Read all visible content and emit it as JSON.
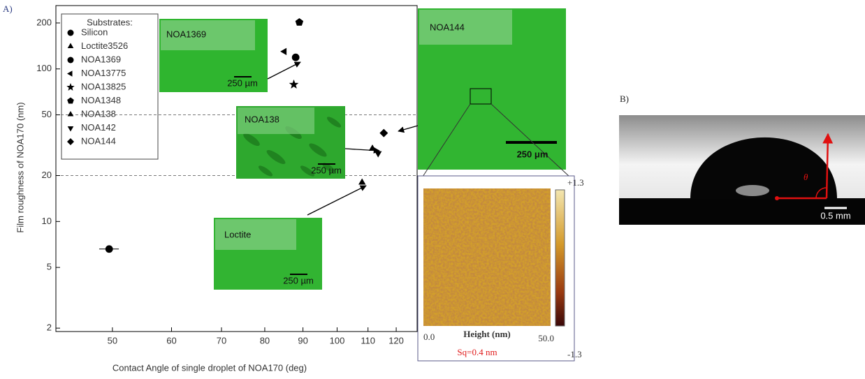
{
  "chart_data": {
    "type": "scatter",
    "panel_label": "A)",
    "x_label": "Contact Angle of single droplet of NOA170 (deg)",
    "y_label": "Film roughness of NOA170 (nm)",
    "xscale": "log",
    "yscale": "log",
    "xlim": [
      42,
      128
    ],
    "ylim": [
      1.9,
      260
    ],
    "xticks": [
      50,
      60,
      70,
      80,
      90,
      100,
      110,
      120
    ],
    "yticks": [
      2,
      5,
      10,
      20,
      50,
      100,
      200
    ],
    "hlines": [
      50,
      20
    ],
    "legend_title": "Substrates:",
    "series": [
      {
        "name": "Silicon",
        "marker": "circle",
        "color": "#000000",
        "x": [
          49.5
        ],
        "values": [
          6.6
        ],
        "xerr": [
          1.5
        ]
      },
      {
        "name": "Loctite3526",
        "marker": "triangle-up",
        "color": "#000000",
        "x": [
          108
        ],
        "values": [
          18
        ]
      },
      {
        "name": "NOA1369",
        "marker": "circle",
        "color": "#000000",
        "x": [
          88
        ],
        "values": [
          119
        ]
      },
      {
        "name": "NOA13775",
        "marker": "triangle-left",
        "color": "#000000",
        "x": [
          85
        ],
        "values": [
          130
        ]
      },
      {
        "name": "NOA13825",
        "marker": "star",
        "color": "#000000",
        "x": [
          87.5
        ],
        "values": [
          79
        ]
      },
      {
        "name": "NOA1348",
        "marker": "pentagon",
        "color": "#000000",
        "x": [
          89
        ],
        "values": [
          202
        ]
      },
      {
        "name": "NOA138",
        "marker": "triangle-up",
        "color": "#000000",
        "x": [
          111.5
        ],
        "values": [
          30
        ]
      },
      {
        "name": "NOA142",
        "marker": "triangle-down",
        "color": "#000000",
        "x": [
          113.5
        ],
        "values": [
          28
        ]
      },
      {
        "name": "NOA144",
        "marker": "diamond",
        "color": "#000000",
        "x": [
          115.5
        ],
        "values": [
          38
        ]
      }
    ],
    "insets": [
      {
        "label": "NOA1369",
        "scale_bar": "250 µm"
      },
      {
        "label": "NOA138",
        "scale_bar": "250 µm"
      },
      {
        "label": "Loctite",
        "scale_bar": "250 µm"
      },
      {
        "label": "NOA144",
        "scale_bar": "250 μm"
      }
    ],
    "afm": {
      "colorbar_max": "+1.3",
      "colorbar_min": "-1.3",
      "axis_start": "0.0",
      "axis_end": "50.0",
      "axis_label": "Height (nm)",
      "roughness": "Sq=0.4 nm"
    }
  },
  "panel_b": {
    "label": "B)",
    "angle_symbol": "θ",
    "scale_bar": "0.5 mm"
  }
}
